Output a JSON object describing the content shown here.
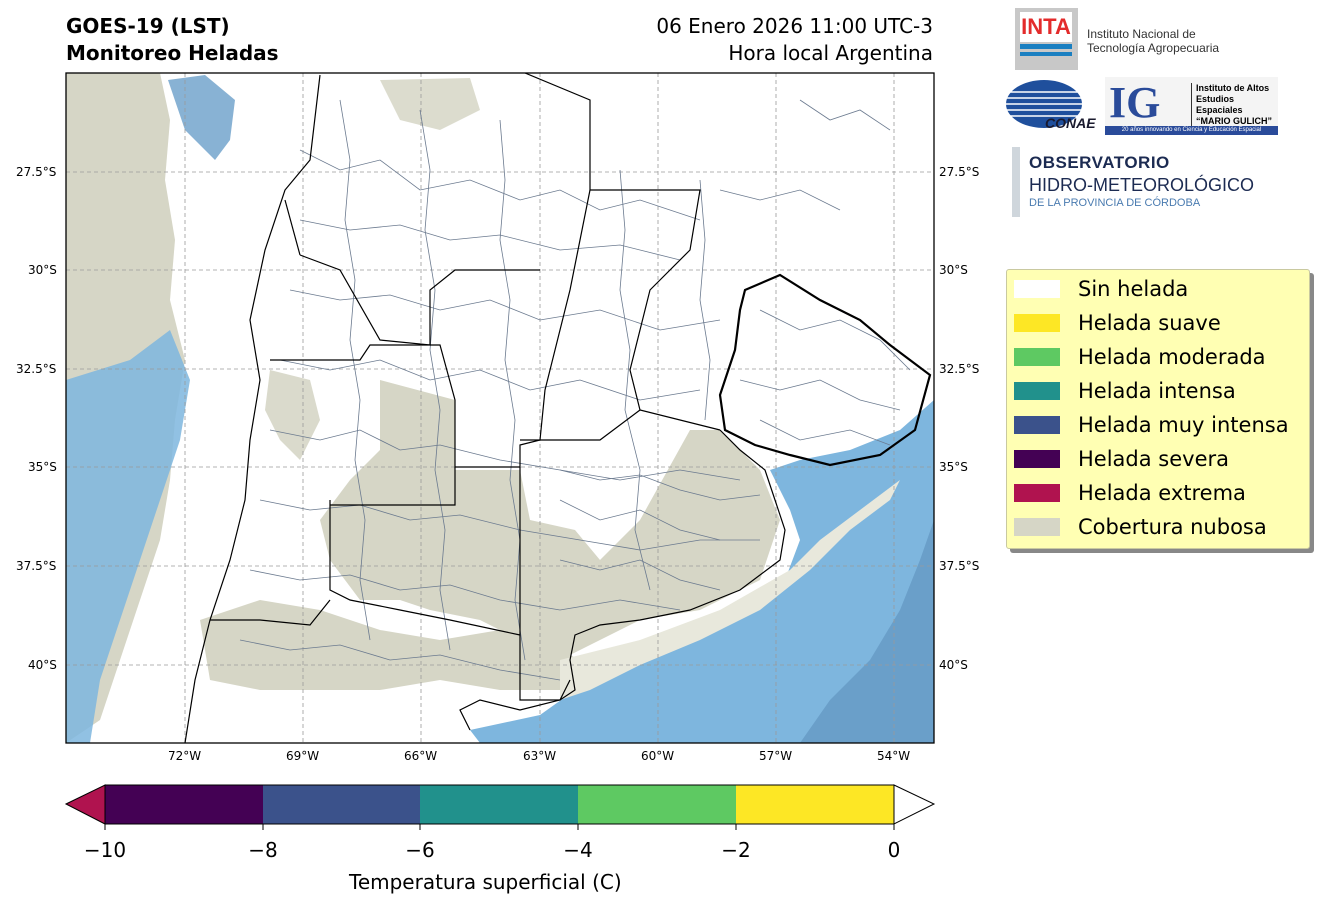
{
  "header": {
    "title_line1": "GOES-19 (LST)",
    "title_line2": "Monitoreo Heladas",
    "date_line": "06 Enero 2026 11:00 UTC-3",
    "local_line": "Hora local Argentina"
  },
  "logos": {
    "inta_acronym": "INTA",
    "inta_name_line1": "Instituto Nacional de",
    "inta_name_line2": "Tecnología Agropecuaria",
    "conae": "CONAE",
    "ig_acronym": "IG",
    "ig_line1": "Instituto de Altos",
    "ig_line2": "Estudios Espaciales",
    "ig_line3": "“MARIO GULICH”",
    "ig_strip": "20 años innovando en Ciencia y Educación Espacial",
    "obs_line1": "OBSERVATORIO",
    "obs_line2": "HIDRO-METEOROLÓGICO",
    "obs_line3": "DE LA PROVINCIA DE CÓRDOBA"
  },
  "map": {
    "lat_labels": [
      "27.5°S",
      "30°S",
      "32.5°S",
      "35°S",
      "37.5°S",
      "40°S"
    ],
    "lon_labels": [
      "72°W",
      "69°W",
      "66°W",
      "63°W",
      "60°W",
      "57°W",
      "54°W"
    ],
    "colors": {
      "land": "#ffffff",
      "cloud": "#d6d6c6",
      "sea": "#7eb6de",
      "sea_dark": "#6a9fc9",
      "border": "#000000",
      "department": "#6b7a8f"
    }
  },
  "legend": {
    "items": [
      {
        "label": "Sin helada",
        "color": "#ffffff"
      },
      {
        "label": "Helada suave",
        "color": "#fde725"
      },
      {
        "label": "Helada moderada",
        "color": "#5ec962"
      },
      {
        "label": "Helada intensa",
        "color": "#21918c"
      },
      {
        "label": "Helada muy intensa",
        "color": "#3b528b"
      },
      {
        "label": "Helada severa",
        "color": "#440154"
      },
      {
        "label": "Helada extrema",
        "color": "#b0134f"
      },
      {
        "label": "Cobertura nubosa",
        "color": "#d6d6c6"
      }
    ]
  },
  "colorbar": {
    "title": "Temperatura superficial (C)",
    "tick_labels": [
      "−10",
      "−8",
      "−6",
      "−4",
      "−2",
      "0"
    ],
    "segments": [
      "#440154",
      "#3b528b",
      "#21918c",
      "#5ec962",
      "#fde725"
    ],
    "under_color": "#b0134f",
    "over_color": "#ffffff"
  }
}
